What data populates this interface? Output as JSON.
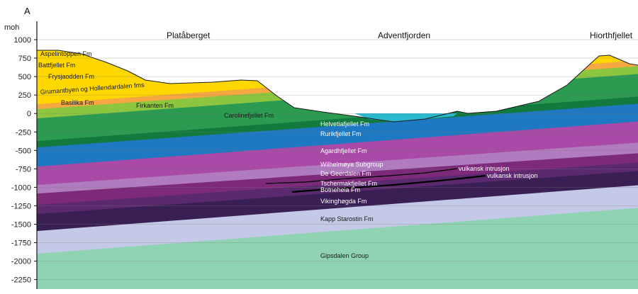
{
  "panel_letter": "A",
  "y_axis_unit": "moh",
  "y_ticks": [
    "1000",
    "750",
    "500",
    "250",
    "0",
    "-250",
    "-500",
    "-750",
    "-1000",
    "-1250",
    "-1500",
    "-1750",
    "-2000",
    "-2250"
  ],
  "places": {
    "west": "Platåberget",
    "center": "Adventfjorden",
    "east": "Hiorthfjellet"
  },
  "formations": {
    "aspelintoppen": "Aspelintoppen Fm",
    "battfjellet": "Battfjellet Fm",
    "frysjaodden": "Frysjaodden Fm",
    "grumantbyen": "Grumantbyen og Hollendardalen fms",
    "basilika": "Basilika Fm",
    "firkanten": "Firkanten Fm",
    "carolinefjellet": "Carolinefjellet Fm",
    "helvetiafjellet": "Helvetiafjellet Fm",
    "rurikfjellet": "Rurikfjellet Fm",
    "agardhfjellet": "Agardhfjellet Fm",
    "wilhelmoya": "Wilhelmøya Subgroup",
    "degeerdalen": "De Geerdalen Fm",
    "tschermakfjellet": "Tschermakfjellet Fm",
    "botneheia": "Botneheia Fm",
    "vikinghogda": "Vikinghøgda Fm",
    "kappstarostin": "Kapp Starostin Fm",
    "gipsdalen": "Gipsdalen Group"
  },
  "intrusions": {
    "upper": "vulkansk intrusjon",
    "lower": "vulkansk intrusjon"
  },
  "colors": {
    "gipsdalen": "#8fd3b3",
    "kappstarostin": "#c3c9e6",
    "vikinghogda": "#3a1f55",
    "botneheia": "#6a2f7a",
    "tschermakfjellet": "#7d2a7a",
    "degeerdalen": "#b07cbf",
    "wilhelmoya": "#a94aa6",
    "agardhfjellet": "#1e78c2",
    "rurikfjellet": "#127a3c",
    "helvetiafjellet": "#2b9b52",
    "carolinefjellet": "#8cc63f",
    "firkanten": "#f5a742",
    "tertiary": "#ffd700",
    "water": "#2ab8cf"
  }
}
